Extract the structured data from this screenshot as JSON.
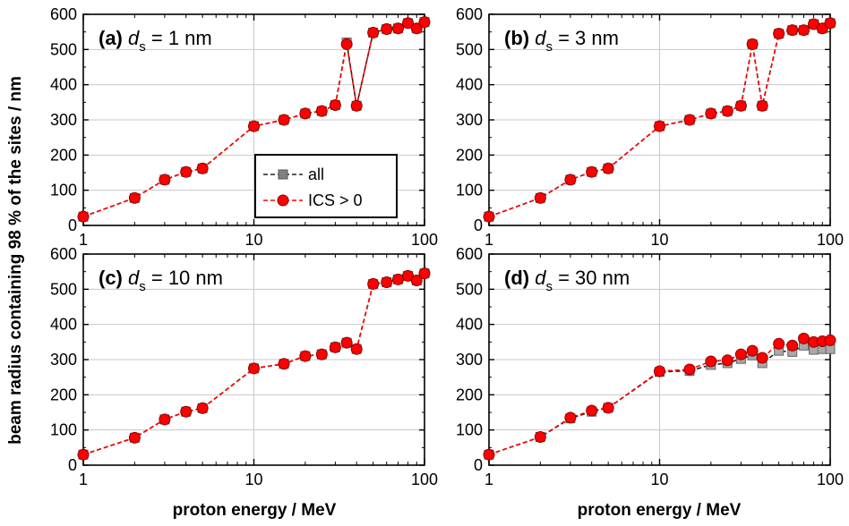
{
  "figure": {
    "ylabel": "beam radius containing 98 % of the sites / nm",
    "xlabel": "proton energy / MeV"
  },
  "legend": {
    "items": [
      {
        "label": "all",
        "color": "#808080",
        "marker": "square",
        "line": "#222222"
      },
      {
        "label": "ICS > 0",
        "color": "#ff0000",
        "marker": "circle",
        "line": "#ff0000"
      }
    ]
  },
  "chart_data": [
    {
      "type": "line",
      "panel": "(a)",
      "label_prefix": "(a)",
      "label_var": "d",
      "label_sub": "s",
      "label_rest": "= 1 nm",
      "xscale": "log",
      "xlim": [
        1,
        100
      ],
      "ylim": [
        0,
        600
      ],
      "xticks": [
        "1",
        "10",
        "100"
      ],
      "yticks": [
        "0",
        "100",
        "200",
        "300",
        "400",
        "500",
        "600"
      ],
      "grid": true,
      "x": [
        1,
        2,
        3,
        4,
        5,
        10,
        15,
        20,
        25,
        30,
        35,
        40,
        50,
        60,
        70,
        80,
        90,
        100
      ],
      "series": [
        {
          "name": "all",
          "values": [
            25,
            78,
            130,
            152,
            162,
            282,
            300,
            318,
            325,
            342,
            520,
            340,
            548,
            558,
            560,
            575,
            560,
            578
          ]
        },
        {
          "name": "ICS > 0",
          "values": [
            25,
            78,
            130,
            152,
            162,
            282,
            300,
            318,
            325,
            342,
            515,
            340,
            548,
            558,
            560,
            575,
            560,
            578
          ]
        }
      ]
    },
    {
      "type": "line",
      "panel": "(b)",
      "label_prefix": "(b)",
      "label_var": "d",
      "label_sub": "s",
      "label_rest": "= 3 nm",
      "xscale": "log",
      "xlim": [
        1,
        100
      ],
      "ylim": [
        0,
        600
      ],
      "xticks": [
        "1",
        "10",
        "100"
      ],
      "yticks": [
        "0",
        "100",
        "200",
        "300",
        "400",
        "500",
        "600"
      ],
      "grid": true,
      "x": [
        1,
        2,
        3,
        4,
        5,
        10,
        15,
        20,
        25,
        30,
        35,
        40,
        50,
        60,
        70,
        80,
        90,
        100
      ],
      "series": [
        {
          "name": "all",
          "values": [
            25,
            78,
            130,
            152,
            162,
            282,
            300,
            318,
            325,
            340,
            515,
            340,
            545,
            555,
            555,
            572,
            560,
            575
          ]
        },
        {
          "name": "ICS > 0",
          "values": [
            25,
            78,
            130,
            152,
            162,
            282,
            300,
            318,
            325,
            340,
            515,
            340,
            545,
            555,
            555,
            572,
            560,
            575
          ]
        }
      ]
    },
    {
      "type": "line",
      "panel": "(c)",
      "label_prefix": "(c)",
      "label_var": "d",
      "label_sub": "s",
      "label_rest": "= 10 nm",
      "xscale": "log",
      "xlim": [
        1,
        100
      ],
      "ylim": [
        0,
        600
      ],
      "xticks": [
        "1",
        "10",
        "100"
      ],
      "yticks": [
        "0",
        "100",
        "200",
        "300",
        "400",
        "500",
        "600"
      ],
      "grid": true,
      "x": [
        1,
        2,
        3,
        4,
        5,
        10,
        15,
        20,
        25,
        30,
        35,
        40,
        50,
        60,
        70,
        80,
        90,
        100
      ],
      "series": [
        {
          "name": "all",
          "values": [
            30,
            78,
            130,
            152,
            162,
            275,
            288,
            310,
            315,
            335,
            348,
            330,
            515,
            520,
            528,
            538,
            525,
            545
          ]
        },
        {
          "name": "ICS > 0",
          "values": [
            30,
            78,
            130,
            152,
            162,
            275,
            288,
            310,
            315,
            335,
            348,
            330,
            515,
            520,
            528,
            538,
            525,
            545
          ]
        }
      ]
    },
    {
      "type": "line",
      "panel": "(d)",
      "label_prefix": "(d)",
      "label_var": "d",
      "label_sub": "s",
      "label_rest": "= 30 nm",
      "xscale": "log",
      "xlim": [
        1,
        100
      ],
      "ylim": [
        0,
        600
      ],
      "xticks": [
        "1",
        "10",
        "100"
      ],
      "yticks": [
        "0",
        "100",
        "200",
        "300",
        "400",
        "500",
        "600"
      ],
      "grid": true,
      "x": [
        1,
        2,
        3,
        4,
        5,
        10,
        15,
        20,
        25,
        30,
        35,
        40,
        50,
        60,
        70,
        80,
        90,
        100
      ],
      "series": [
        {
          "name": "all",
          "values": [
            30,
            80,
            133,
            152,
            163,
            265,
            268,
            285,
            290,
            302,
            312,
            290,
            325,
            322,
            340,
            328,
            330,
            330
          ]
        },
        {
          "name": "ICS > 0",
          "values": [
            30,
            80,
            135,
            155,
            163,
            267,
            272,
            295,
            298,
            315,
            325,
            305,
            345,
            340,
            360,
            350,
            352,
            355
          ]
        }
      ]
    }
  ]
}
